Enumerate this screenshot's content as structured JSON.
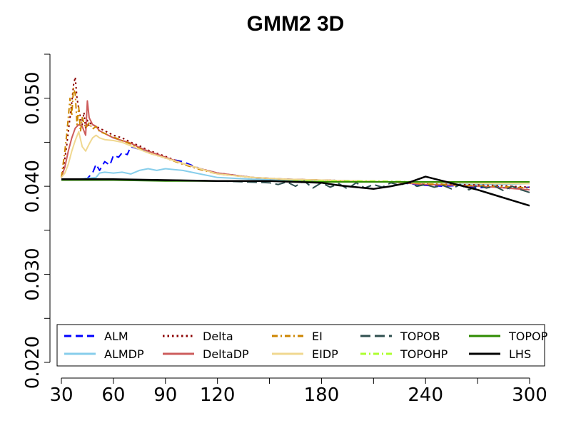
{
  "chart_data": {
    "type": "line",
    "title": "GMM2 3D",
    "xlabel": "",
    "ylabel": "",
    "xlim": [
      30,
      300
    ],
    "ylim": [
      0.02,
      0.055
    ],
    "x_ticks": [
      30,
      60,
      90,
      120,
      150,
      180,
      210,
      240,
      270,
      300
    ],
    "x_tick_labels": [
      "30",
      "60",
      "90",
      "120",
      "",
      "180",
      "",
      "240",
      "",
      "300"
    ],
    "y_ticks": [
      0.02,
      0.025,
      0.03,
      0.035,
      0.04,
      0.045,
      0.05,
      0.055
    ],
    "y_tick_labels": [
      "0.020",
      "",
      "0.030",
      "",
      "0.040",
      "",
      "0.050",
      ""
    ],
    "grid": false,
    "legend": {
      "placement": "bottom",
      "columns": 5
    },
    "series": [
      {
        "name": "ALM",
        "color": "#0000ff",
        "dash": "dashed",
        "x": [
          30,
          40,
          45,
          48,
          50,
          52,
          55,
          58,
          60,
          63,
          65,
          68,
          70,
          75,
          80,
          85,
          90,
          95,
          100,
          110,
          120,
          140,
          160,
          180,
          200,
          220,
          230,
          240,
          250,
          260,
          270,
          280,
          290,
          300
        ],
        "y": [
          0.0408,
          0.0408,
          0.0409,
          0.0415,
          0.0425,
          0.0418,
          0.0428,
          0.0424,
          0.0435,
          0.0433,
          0.0438,
          0.0436,
          0.0445,
          0.0442,
          0.044,
          0.0436,
          0.0432,
          0.043,
          0.0428,
          0.042,
          0.0415,
          0.041,
          0.0408,
          0.0407,
          0.0406,
          0.0405,
          0.0403,
          0.0401,
          0.04,
          0.0401,
          0.0398,
          0.04,
          0.0397,
          0.0399
        ]
      },
      {
        "name": "ALMDP",
        "color": "#87ceeb",
        "dash": "solid",
        "x": [
          30,
          40,
          45,
          50,
          52,
          55,
          60,
          65,
          70,
          75,
          80,
          85,
          90,
          95,
          100,
          105,
          110,
          120,
          140,
          160,
          180,
          200,
          220,
          240,
          260,
          280,
          300
        ],
        "y": [
          0.0408,
          0.0408,
          0.0409,
          0.041,
          0.0415,
          0.0416,
          0.0415,
          0.0416,
          0.0414,
          0.0418,
          0.042,
          0.0418,
          0.042,
          0.0419,
          0.0418,
          0.0416,
          0.0414,
          0.041,
          0.0408,
          0.0407,
          0.0406,
          0.0406,
          0.0405,
          0.0404,
          0.0403,
          0.0402,
          0.0403
        ]
      },
      {
        "name": "Delta",
        "color": "#8b0000",
        "dash": "dotted",
        "x": [
          30,
          31,
          32,
          33,
          34,
          35,
          36,
          37,
          38,
          39,
          40,
          41,
          42,
          43,
          44,
          45,
          46,
          47,
          48,
          50,
          52,
          55,
          58,
          60,
          65,
          70,
          75,
          80,
          90,
          100,
          110,
          120,
          140,
          160,
          180,
          200,
          220,
          240,
          260,
          280,
          300
        ],
        "y": [
          0.041,
          0.0418,
          0.0432,
          0.0445,
          0.0462,
          0.0478,
          0.0495,
          0.0515,
          0.0524,
          0.05,
          0.0488,
          0.0478,
          0.047,
          0.0484,
          0.0466,
          0.0475,
          0.0468,
          0.0472,
          0.047,
          0.0468,
          0.0466,
          0.0463,
          0.046,
          0.0458,
          0.0455,
          0.045,
          0.0446,
          0.0441,
          0.0434,
          0.0426,
          0.042,
          0.0415,
          0.041,
          0.0408,
          0.0407,
          0.0406,
          0.0405,
          0.0403,
          0.0402,
          0.0401,
          0.0399
        ]
      },
      {
        "name": "DeltaDP",
        "color": "#cd5c5c",
        "dash": "solid",
        "x": [
          30,
          32,
          34,
          36,
          38,
          40,
          42,
          44,
          45,
          46,
          48,
          50,
          52,
          55,
          58,
          60,
          65,
          70,
          75,
          80,
          90,
          100,
          110,
          120,
          140,
          160,
          180,
          200,
          220,
          240,
          260,
          280,
          300
        ],
        "y": [
          0.041,
          0.0422,
          0.044,
          0.0455,
          0.0466,
          0.047,
          0.0468,
          0.0458,
          0.0497,
          0.0478,
          0.047,
          0.0468,
          0.0463,
          0.046,
          0.0457,
          0.0455,
          0.0452,
          0.0449,
          0.0444,
          0.044,
          0.0433,
          0.0426,
          0.042,
          0.0415,
          0.041,
          0.0408,
          0.0407,
          0.0406,
          0.0405,
          0.0402,
          0.0401,
          0.0399,
          0.0396
        ]
      },
      {
        "name": "EI",
        "color": "#cd8500",
        "dash": "dashdot",
        "x": [
          30,
          31,
          32,
          33,
          34,
          35,
          36,
          37,
          38,
          39,
          40,
          41,
          42,
          44,
          46,
          48,
          50,
          52,
          55,
          60,
          65,
          70,
          75,
          80,
          90,
          100,
          110,
          120,
          140,
          160,
          180,
          200,
          220,
          240,
          260,
          280,
          300
        ],
        "y": [
          0.041,
          0.0425,
          0.044,
          0.0458,
          0.0478,
          0.05,
          0.048,
          0.0512,
          0.0505,
          0.047,
          0.049,
          0.0462,
          0.0478,
          0.0466,
          0.0472,
          0.0465,
          0.0468,
          0.0462,
          0.046,
          0.0456,
          0.0452,
          0.0448,
          0.0443,
          0.0438,
          0.0432,
          0.0425,
          0.0419,
          0.0414,
          0.041,
          0.0408,
          0.0407,
          0.0406,
          0.0405,
          0.0403,
          0.0401,
          0.04,
          0.0398
        ]
      },
      {
        "name": "EIDP",
        "color": "#f0d890",
        "dash": "solid",
        "x": [
          30,
          32,
          34,
          36,
          38,
          40,
          42,
          44,
          46,
          48,
          50,
          52,
          55,
          60,
          65,
          70,
          75,
          80,
          90,
          100,
          110,
          120,
          140,
          160,
          180,
          200,
          220,
          240,
          260,
          280,
          300
        ],
        "y": [
          0.041,
          0.0415,
          0.0425,
          0.044,
          0.0452,
          0.0462,
          0.0445,
          0.044,
          0.0448,
          0.0455,
          0.0458,
          0.0455,
          0.0453,
          0.0452,
          0.045,
          0.0446,
          0.0442,
          0.0438,
          0.0432,
          0.0426,
          0.042,
          0.0414,
          0.041,
          0.0408,
          0.0407,
          0.0406,
          0.0405,
          0.0404,
          0.0404,
          0.0403,
          0.0403
        ]
      },
      {
        "name": "TOPOB",
        "color": "#2f4f4f",
        "dash": "longdash",
        "x": [
          30,
          60,
          90,
          120,
          150,
          155,
          160,
          165,
          170,
          175,
          180,
          185,
          190,
          195,
          200,
          205,
          210,
          215,
          220,
          225,
          230,
          235,
          240,
          245,
          250,
          255,
          260,
          265,
          270,
          275,
          280,
          285,
          290,
          295,
          300
        ],
        "y": [
          0.0408,
          0.0407,
          0.0407,
          0.0406,
          0.0404,
          0.0402,
          0.0405,
          0.04,
          0.0406,
          0.0398,
          0.0404,
          0.0399,
          0.0403,
          0.0397,
          0.0404,
          0.0398,
          0.0402,
          0.0399,
          0.0404,
          0.0401,
          0.0405,
          0.04,
          0.0402,
          0.0399,
          0.0401,
          0.0397,
          0.0402,
          0.0396,
          0.0401,
          0.0398,
          0.04,
          0.0395,
          0.04,
          0.0396,
          0.0393
        ]
      },
      {
        "name": "TOPOHP",
        "color": "#adff2f",
        "dash": "dashdot",
        "x": [
          30,
          60,
          90,
          120,
          150,
          180,
          210,
          240,
          270,
          300
        ],
        "y": [
          0.0408,
          0.0407,
          0.0407,
          0.0406,
          0.0406,
          0.0406,
          0.0406,
          0.0405,
          0.0405,
          0.0405
        ]
      },
      {
        "name": "TOPOP",
        "color": "#2e8b00",
        "dash": "solid",
        "x": [
          30,
          60,
          90,
          120,
          150,
          180,
          210,
          240,
          270,
          300
        ],
        "y": [
          0.0407,
          0.0407,
          0.0406,
          0.0406,
          0.0406,
          0.0405,
          0.0405,
          0.0405,
          0.0405,
          0.0405
        ]
      },
      {
        "name": "LHS",
        "color": "#000000",
        "dash": "solid",
        "width": 2.5,
        "x": [
          30,
          60,
          90,
          120,
          150,
          180,
          190,
          200,
          210,
          220,
          230,
          240,
          250,
          260,
          270,
          280,
          290,
          300
        ],
        "y": [
          0.0408,
          0.0408,
          0.0407,
          0.0406,
          0.0406,
          0.0404,
          0.0401,
          0.0399,
          0.0397,
          0.04,
          0.0404,
          0.0411,
          0.0406,
          0.0401,
          0.0396,
          0.039,
          0.0384,
          0.0378
        ]
      }
    ]
  }
}
